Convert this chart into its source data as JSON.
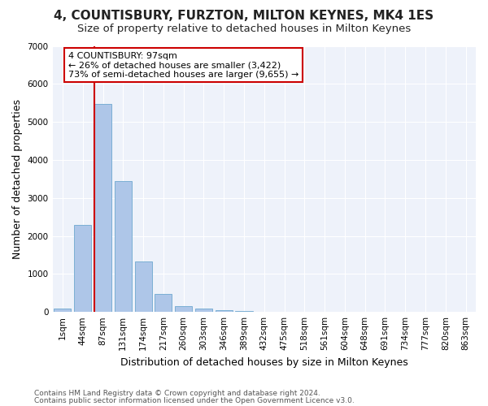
{
  "title": "4, COUNTISBURY, FURZTON, MILTON KEYNES, MK4 1ES",
  "subtitle": "Size of property relative to detached houses in Milton Keynes",
  "xlabel": "Distribution of detached houses by size in Milton Keynes",
  "ylabel": "Number of detached properties",
  "footnote1": "Contains HM Land Registry data © Crown copyright and database right 2024.",
  "footnote2": "Contains public sector information licensed under the Open Government Licence v3.0.",
  "bar_labels": [
    "1sqm",
    "44sqm",
    "87sqm",
    "131sqm",
    "174sqm",
    "217sqm",
    "260sqm",
    "303sqm",
    "346sqm",
    "389sqm",
    "432sqm",
    "475sqm",
    "518sqm",
    "561sqm",
    "604sqm",
    "648sqm",
    "691sqm",
    "734sqm",
    "777sqm",
    "820sqm",
    "863sqm"
  ],
  "bar_values": [
    80,
    2280,
    5480,
    3450,
    1320,
    470,
    155,
    85,
    55,
    30,
    0,
    0,
    0,
    0,
    0,
    0,
    0,
    0,
    0,
    0,
    0
  ],
  "bar_color": "#aec6e8",
  "bar_edge_color": "#7bafd4",
  "ylim": [
    0,
    7000
  ],
  "yticks": [
    0,
    1000,
    2000,
    3000,
    4000,
    5000,
    6000,
    7000
  ],
  "red_line_bin": 2,
  "annotation_line1": "4 COUNTISBURY: 97sqm",
  "annotation_line2": "← 26% of detached houses are smaller (3,422)",
  "annotation_line3": "73% of semi-detached houses are larger (9,655) →",
  "annotation_box_color": "#ffffff",
  "annotation_box_edgecolor": "#cc0000",
  "red_line_color": "#cc0000",
  "background_color": "#eef2fa",
  "grid_color": "#ffffff",
  "title_fontsize": 11,
  "subtitle_fontsize": 9.5,
  "axis_label_fontsize": 9,
  "tick_fontsize": 7.5,
  "annotation_fontsize": 8,
  "footnote_fontsize": 6.5
}
